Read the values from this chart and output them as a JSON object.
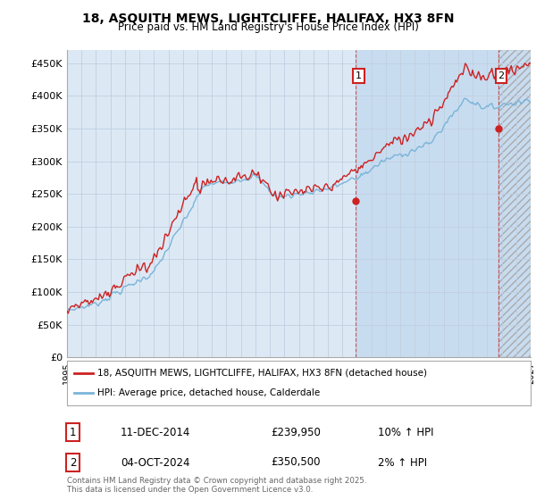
{
  "title_line1": "18, ASQUITH MEWS, LIGHTCLIFFE, HALIFAX, HX3 8FN",
  "title_line2": "Price paid vs. HM Land Registry's House Price Index (HPI)",
  "ylabel_ticks": [
    "£0",
    "£50K",
    "£100K",
    "£150K",
    "£200K",
    "£250K",
    "£300K",
    "£350K",
    "£400K",
    "£450K"
  ],
  "ytick_values": [
    0,
    50000,
    100000,
    150000,
    200000,
    250000,
    300000,
    350000,
    400000,
    450000
  ],
  "year_start": 1995,
  "year_end": 2027,
  "hpi_color": "#7ab4d8",
  "price_color": "#cc2222",
  "background_color": "#dce9f5",
  "plot_bg_color": "#dce9f5",
  "highlight_bg_color": "#c8dcf0",
  "legend_label_price": "18, ASQUITH MEWS, LIGHTCLIFFE, HALIFAX, HX3 8FN (detached house)",
  "legend_label_hpi": "HPI: Average price, detached house, Calderdale",
  "point1_label": "1",
  "point1_date": "11-DEC-2014",
  "point1_price": 239950,
  "point1_hpi": "10% ↑ HPI",
  "point1_year": 2014.92,
  "point2_label": "2",
  "point2_date": "04-OCT-2024",
  "point2_price": 350500,
  "point2_hpi": "2% ↑ HPI",
  "point2_year": 2024.75,
  "footer": "Contains HM Land Registry data © Crown copyright and database right 2025.\nThis data is licensed under the Open Government Licence v3.0.",
  "vline_color": "#cc2222",
  "grid_color": "#c0cfe0"
}
